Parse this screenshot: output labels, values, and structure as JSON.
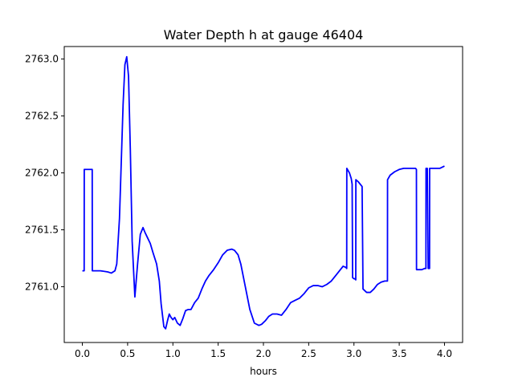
{
  "chart_data": {
    "type": "line",
    "title": "Water Depth h at gauge 46404",
    "xlabel": "hours",
    "ylabel": "",
    "xlim": [
      -0.2,
      4.2
    ],
    "ylim": [
      2760.51,
      2763.11
    ],
    "xticks": [
      0.0,
      0.5,
      1.0,
      1.5,
      2.0,
      2.5,
      3.0,
      3.5,
      4.0
    ],
    "xtick_labels": [
      "0.0",
      "0.5",
      "1.0",
      "1.5",
      "2.0",
      "2.5",
      "3.0",
      "3.5",
      "4.0"
    ],
    "yticks": [
      2761.0,
      2761.5,
      2762.0,
      2762.5,
      2763.0
    ],
    "ytick_labels": [
      "2761.0",
      "2761.5",
      "2762.0",
      "2762.5",
      "2763.0"
    ],
    "grid": false,
    "colors": {
      "line": "#0000ff",
      "axes": "#000000",
      "background": "#ffffff"
    },
    "series": [
      {
        "x": [
          0.0,
          0.02,
          0.021,
          0.05,
          0.08,
          0.109,
          0.11,
          0.2,
          0.28,
          0.32,
          0.36,
          0.38,
          0.41,
          0.45,
          0.47,
          0.49,
          0.51,
          0.53,
          0.55,
          0.58,
          0.61,
          0.64,
          0.67,
          0.69,
          0.72,
          0.75,
          0.78,
          0.82,
          0.85,
          0.87,
          0.9,
          0.92,
          0.94,
          0.96,
          0.98,
          1.0,
          1.02,
          1.05,
          1.08,
          1.11,
          1.14,
          1.17,
          1.2,
          1.24,
          1.28,
          1.32,
          1.36,
          1.4,
          1.45,
          1.5,
          1.55,
          1.6,
          1.65,
          1.68,
          1.72,
          1.75,
          1.8,
          1.85,
          1.9,
          1.95,
          1.98,
          2.02,
          2.06,
          2.1,
          2.15,
          2.2,
          2.25,
          2.3,
          2.35,
          2.4,
          2.45,
          2.5,
          2.55,
          2.6,
          2.65,
          2.7,
          2.75,
          2.8,
          2.85,
          2.88,
          2.91,
          2.92,
          2.921,
          2.95,
          2.97,
          2.98,
          2.985,
          3.0,
          3.01,
          3.02,
          3.021,
          3.05,
          3.08,
          3.09,
          3.1,
          3.14,
          3.18,
          3.22,
          3.26,
          3.3,
          3.34,
          3.36,
          3.37,
          3.371,
          3.4,
          3.45,
          3.5,
          3.55,
          3.6,
          3.65,
          3.68,
          3.69,
          3.691,
          3.72,
          3.75,
          3.78,
          3.79,
          3.795,
          3.796,
          3.8,
          3.81,
          3.82,
          3.83,
          3.835,
          3.836,
          3.86,
          3.9,
          3.95,
          4.0
        ],
        "y": [
          2761.14,
          2761.14,
          2762.03,
          2762.03,
          2762.03,
          2762.03,
          2761.14,
          2761.14,
          2761.13,
          2761.12,
          2761.14,
          2761.2,
          2761.6,
          2762.6,
          2762.95,
          2763.02,
          2762.85,
          2762.2,
          2761.4,
          2760.91,
          2761.2,
          2761.46,
          2761.52,
          2761.48,
          2761.43,
          2761.38,
          2761.3,
          2761.2,
          2761.05,
          2760.85,
          2760.65,
          2760.63,
          2760.7,
          2760.76,
          2760.73,
          2760.71,
          2760.73,
          2760.68,
          2760.66,
          2760.72,
          2760.79,
          2760.8,
          2760.8,
          2760.86,
          2760.9,
          2760.98,
          2761.05,
          2761.1,
          2761.15,
          2761.21,
          2761.28,
          2761.32,
          2761.33,
          2761.32,
          2761.28,
          2761.2,
          2761.0,
          2760.8,
          2760.68,
          2760.66,
          2760.67,
          2760.7,
          2760.74,
          2760.76,
          2760.76,
          2760.75,
          2760.8,
          2760.86,
          2760.88,
          2760.9,
          2760.94,
          2760.99,
          2761.01,
          2761.01,
          2761.0,
          2761.02,
          2761.05,
          2761.1,
          2761.15,
          2761.18,
          2761.17,
          2761.16,
          2762.04,
          2762.0,
          2761.95,
          2761.9,
          2761.08,
          2761.07,
          2761.07,
          2761.06,
          2761.94,
          2761.92,
          2761.89,
          2761.88,
          2760.98,
          2760.95,
          2760.95,
          2760.98,
          2761.02,
          2761.04,
          2761.05,
          2761.05,
          2761.05,
          2761.94,
          2761.98,
          2762.01,
          2762.03,
          2762.04,
          2762.04,
          2762.04,
          2762.04,
          2762.03,
          2761.15,
          2761.15,
          2761.15,
          2761.16,
          2761.16,
          2761.16,
          2762.04,
          2762.04,
          2762.04,
          2761.16,
          2761.16,
          2761.16,
          2762.04,
          2762.04,
          2762.04,
          2762.04,
          2762.06
        ]
      }
    ]
  }
}
